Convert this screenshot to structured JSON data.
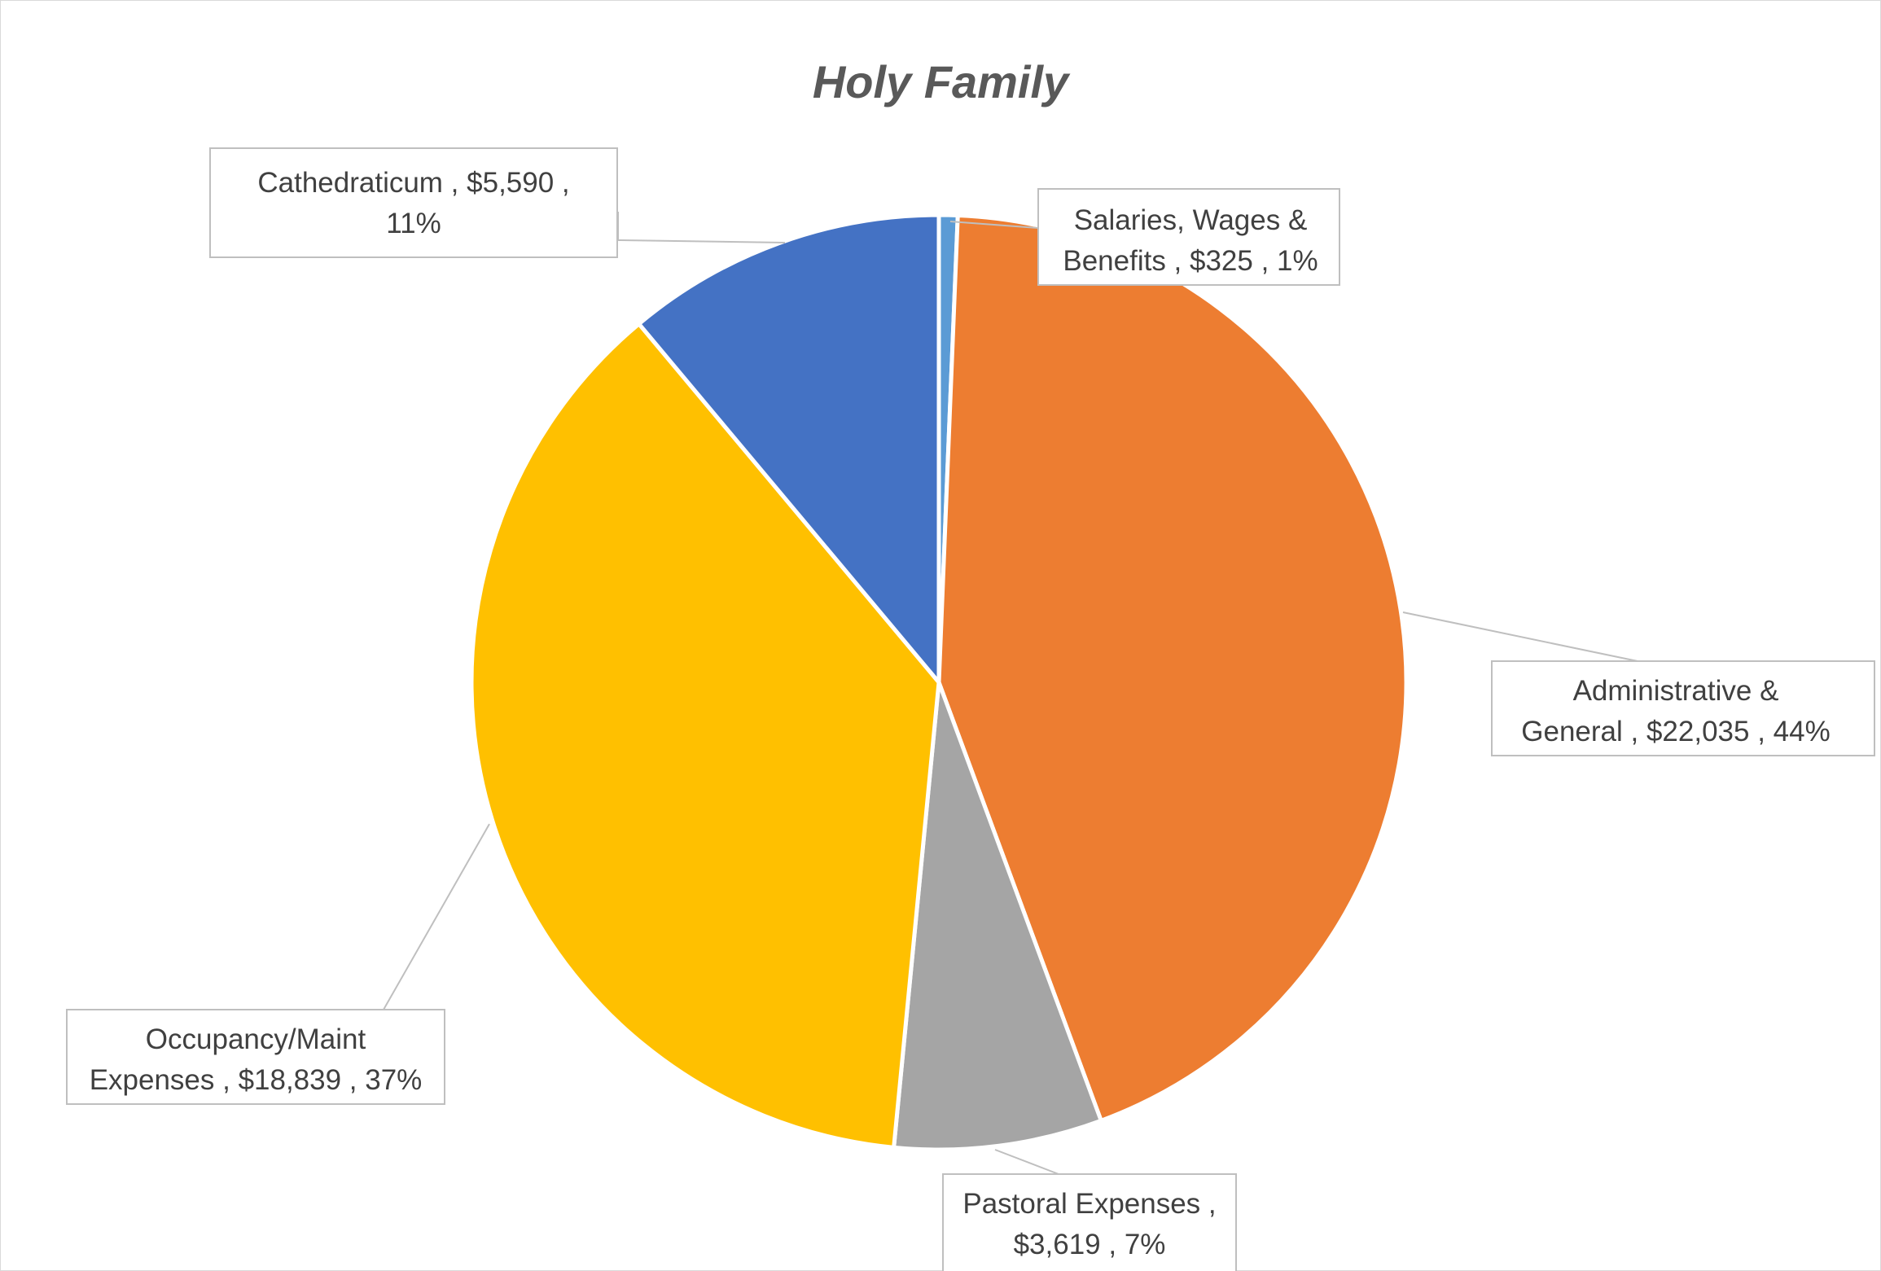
{
  "chart_data": {
    "type": "pie",
    "title": "Holy Family",
    "slices": [
      {
        "label": "Salaries, Wages & Benefits",
        "value": 325,
        "value_label": "$325",
        "percent_label": "1%",
        "color": "#5B9BD5",
        "label_lines": [
          "Salaries, Wages &",
          "Benefits ,  $325 , 1%"
        ]
      },
      {
        "label": "Administrative & General",
        "value": 22035,
        "value_label": "$22,035",
        "percent_label": "44%",
        "color": "#ED7D31",
        "label_lines": [
          "Administrative &",
          "General ,  $22,035 , 44%"
        ]
      },
      {
        "label": "Pastoral Expenses",
        "value": 3619,
        "value_label": "$3,619",
        "percent_label": "7%",
        "color": "#A5A5A5",
        "label_lines": [
          "Pastoral Expenses ,",
          "$3,619 , 7%"
        ]
      },
      {
        "label": "Occupancy/Maint Expenses",
        "value": 18839,
        "value_label": "$18,839",
        "percent_label": "37%",
        "color": "#FFC000",
        "label_lines": [
          "Occupancy/Maint",
          "Expenses ,  $18,839 , 37%"
        ]
      },
      {
        "label": "Cathedraticum",
        "value": 5590,
        "value_label": "$5,590",
        "percent_label": "11%",
        "color": "#4472C4",
        "label_lines": [
          "Cathedraticum ,  $5,590 ,",
          "11%"
        ]
      }
    ],
    "legend": "none",
    "data_labels": "callouts"
  }
}
